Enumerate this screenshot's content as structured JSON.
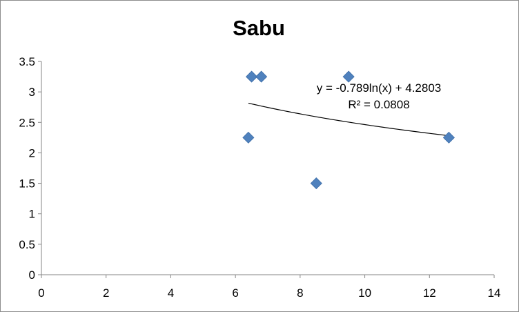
{
  "chart_data": {
    "type": "scatter",
    "title": "Sabu",
    "xlabel": "",
    "ylabel": "",
    "xlim": [
      0,
      14
    ],
    "ylim": [
      0,
      3.5
    ],
    "x_ticks": [
      "0",
      "2",
      "4",
      "6",
      "8",
      "10",
      "12",
      "14"
    ],
    "y_ticks": [
      "0",
      "0.5",
      "1",
      "1.5",
      "2",
      "2.5",
      "3",
      "3.5"
    ],
    "grid": false,
    "legend": "none",
    "marker": "diamond",
    "marker_color": "#4f81bd",
    "series": [
      {
        "points": [
          {
            "x": 6.4,
            "y": 2.25
          },
          {
            "x": 6.5,
            "y": 3.25
          },
          {
            "x": 6.8,
            "y": 3.25
          },
          {
            "x": 8.5,
            "y": 1.5
          },
          {
            "x": 9.5,
            "y": 3.25
          },
          {
            "x": 12.6,
            "y": 2.25
          }
        ]
      }
    ],
    "trendline": {
      "type": "logarithmic",
      "a": -0.789,
      "b": 4.2803,
      "x_range": [
        6.4,
        12.6
      ],
      "equation": "y = -0.789ln(x) + 4.2803",
      "r_squared": "R² = 0.0808",
      "color": "#000000"
    }
  }
}
